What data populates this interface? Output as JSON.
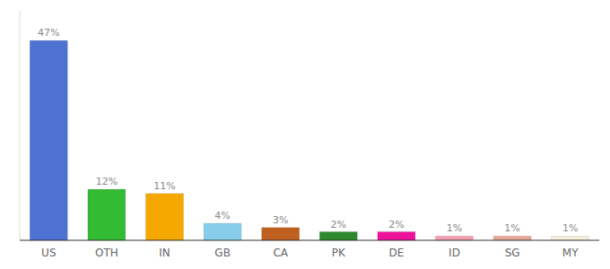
{
  "chart_data": {
    "type": "bar",
    "categories": [
      "US",
      "OTH",
      "IN",
      "GB",
      "CA",
      "PK",
      "DE",
      "ID",
      "SG",
      "MY"
    ],
    "values": [
      47,
      12,
      11,
      4,
      3,
      2,
      2,
      1,
      1,
      1
    ],
    "value_labels": [
      "47%",
      "12%",
      "11%",
      "4%",
      "3%",
      "2%",
      "2%",
      "1%",
      "1%",
      "1%"
    ],
    "data_labels": true,
    "colors": [
      "#4d72d1",
      "#33bb33",
      "#f5a800",
      "#87ceeb",
      "#c06020",
      "#2d8a2d",
      "#ee1199",
      "#f4a0b0",
      "#e8a898",
      "#f5f0dc"
    ],
    "ylim": [
      0,
      54
    ],
    "tick_labels": "x"
  }
}
